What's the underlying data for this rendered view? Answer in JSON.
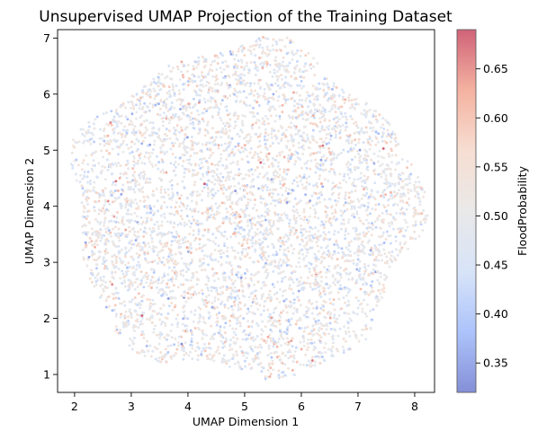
{
  "chart_data": {
    "type": "scatter",
    "title": "Unsupervised UMAP Projection of the Training Dataset",
    "xlabel": "UMAP Dimension 1",
    "ylabel": "UMAP Dimension 2",
    "xlim": [
      1.7,
      8.35
    ],
    "ylim": [
      0.68,
      7.15
    ],
    "xticks": [
      "2",
      "3",
      "4",
      "5",
      "6",
      "7",
      "8"
    ],
    "yticks": [
      "1",
      "2",
      "3",
      "4",
      "5",
      "6",
      "7"
    ],
    "colorbar": {
      "label": "FloodProbability",
      "min": 0.32,
      "max": 0.69,
      "ticks": [
        "0.35",
        "0.40",
        "0.45",
        "0.50",
        "0.55",
        "0.60",
        "0.65"
      ],
      "colormap": "coolwarm",
      "colors": [
        "#3b4cc0",
        "#7b9ff9",
        "#c0d4f5",
        "#dddcdc",
        "#f2cbb7",
        "#ee8468",
        "#b40426"
      ]
    },
    "point_cloud": {
      "shape": "roughly circular cloud",
      "center": [
        5.0,
        3.9
      ],
      "x_extent": [
        1.95,
        8.05
      ],
      "y_extent": [
        0.95,
        6.85
      ],
      "color_value_range": [
        0.32,
        0.69
      ],
      "color_value_typical": 0.5,
      "marker_alpha": 0.6,
      "grid": false
    }
  }
}
